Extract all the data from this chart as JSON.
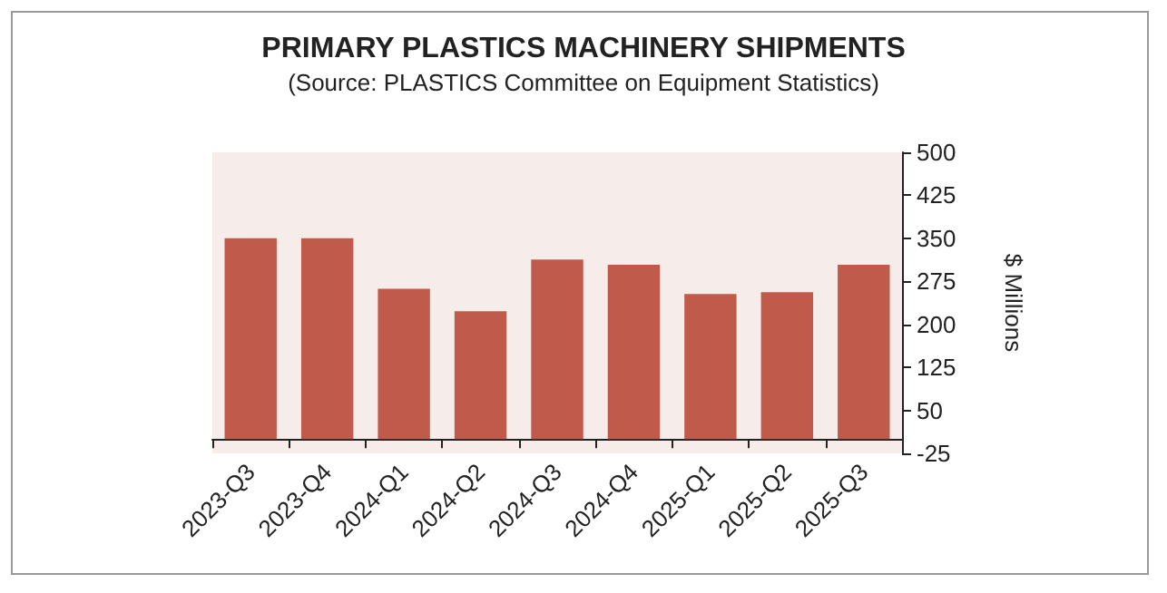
{
  "chart_data": {
    "type": "bar",
    "title": "PRIMARY PLASTICS MACHINERY SHIPMENTS",
    "subtitle": "(Source: PLASTICS Committee on Equipment Statistics)",
    "ylabel": "$ Millions",
    "categories": [
      "2023-Q3",
      "2023-Q4",
      "2024-Q1",
      "2024-Q2",
      "2024-Q3",
      "2024-Q4",
      "2025-Q1",
      "2025-Q2",
      "2025-Q3"
    ],
    "values": [
      350,
      350,
      262,
      223,
      313,
      304,
      253,
      256,
      304
    ],
    "color": "#c05a4a",
    "ylim": [
      -25,
      500
    ],
    "yticks": [
      -25,
      50,
      125,
      200,
      275,
      350,
      425,
      500
    ],
    "grid": false
  }
}
